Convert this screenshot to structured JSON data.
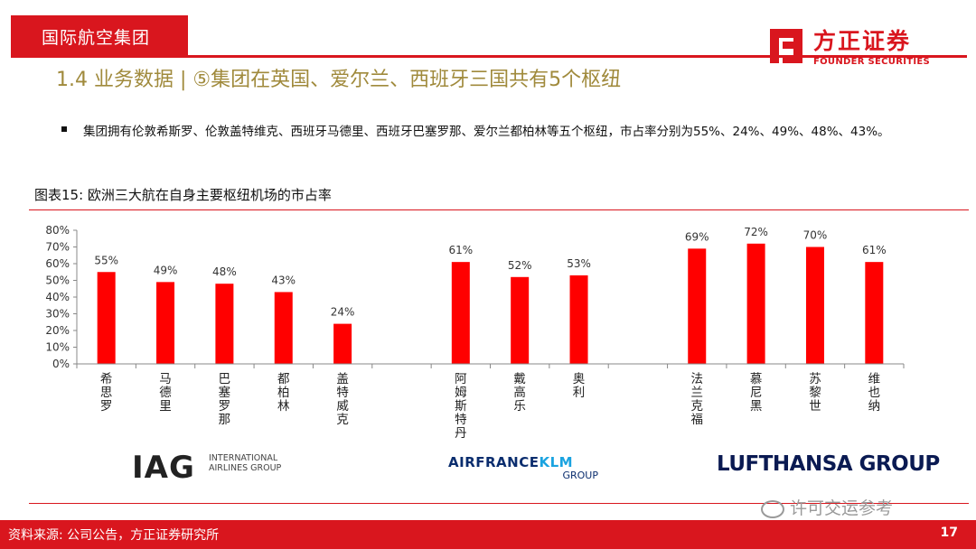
{
  "header": {
    "section_tag": "国际航空集团",
    "logo_cn": "方正证券",
    "logo_en": "FOUNDER SECURITIES",
    "brand_color": "#d9161e"
  },
  "title": "1.4  业务数据 |  ⑤集团在英国、爱尔兰、西班牙三国共有5个枢纽",
  "bullet": "集团拥有伦敦希斯罗、伦敦盖特维克、西班牙马德里、西班牙巴塞罗那、爱尔兰都柏林等五个枢纽，市占率分别为55%、24%、49%、48%、43%。",
  "figure_title": "图表15:  欧洲三大航在自身主要枢纽机场的市占率",
  "chart_data": {
    "type": "bar",
    "title": "",
    "xlabel": "",
    "ylabel": "",
    "ylim": [
      0,
      80
    ],
    "y_ticks": [
      "0%",
      "10%",
      "20%",
      "30%",
      "40%",
      "50%",
      "60%",
      "70%",
      "80%"
    ],
    "categories": [
      "希思罗",
      "马德里",
      "巴塞罗那",
      "都柏林",
      "盖特威克",
      "阿姆斯特丹",
      "戴高乐",
      "奥利",
      "法兰克福",
      "慕尼黑",
      "苏黎世",
      "维也纳"
    ],
    "values": [
      55,
      49,
      48,
      43,
      24,
      61,
      52,
      53,
      69,
      72,
      70,
      61
    ],
    "value_labels": [
      "55%",
      "49%",
      "48%",
      "43%",
      "24%",
      "61%",
      "52%",
      "53%",
      "69%",
      "72%",
      "70%",
      "61%"
    ],
    "groups": [
      "IAG",
      "AIRFRANCE KLM",
      "LUFTHANSA GROUP"
    ],
    "bar_color": "#ff0000",
    "grid": false,
    "legend": "none"
  },
  "logos": {
    "iag_main": "IAG",
    "iag_sub": "INTERNATIONAL AIRLINES GROUP",
    "afk_a": "AIRFRANCE",
    "afk_b": "KLM",
    "afk_sub": "GROUP",
    "lufthansa": "LUFTHANSA GROUP"
  },
  "watermark": "许可交运参考",
  "footer": {
    "source": "资料来源:  公司公告，方正证券研究所",
    "page": "17"
  }
}
